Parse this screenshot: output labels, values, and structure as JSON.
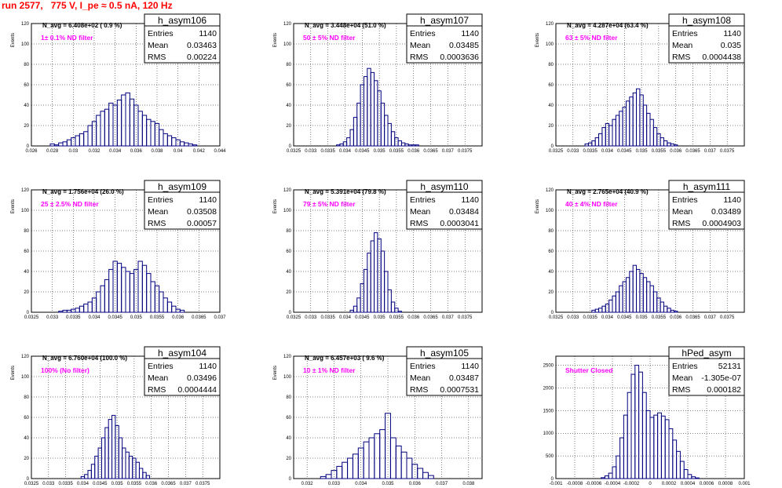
{
  "page": {
    "run_title": "run 2577,   775 V, I_pe ≈ 0.5 nA, 120 Hz"
  },
  "colors": {
    "histogram": "#00007f",
    "filter_label": "#ff00ff",
    "title": "#ff0000",
    "grid": "#000000"
  },
  "chart_data": [
    {
      "type": "bar",
      "name": "h_asym106",
      "ylabel": "Events",
      "xlabel": "",
      "xlim": [
        0.026,
        0.044
      ],
      "ylim": [
        0,
        120
      ],
      "xticks": [
        "0.026",
        "0.028",
        "0.03",
        "0.032",
        "0.034",
        "0.036",
        "0.038",
        "0.04",
        "0.042",
        "0.044"
      ],
      "yticks": [
        "0",
        "20",
        "40",
        "60",
        "80",
        "100",
        "120"
      ],
      "stats": {
        "entries_label": "Entries",
        "entries": "1140",
        "mean_label": "Mean",
        "mean": "0.03463",
        "rms_label": "RMS",
        "rms": "0.00224"
      },
      "n_avg": "N_avg = 6.408e+02 ( 0.9 %)",
      "filter": "1± 0.1% ND filter",
      "x": [
        0.028,
        0.0284,
        0.0288,
        0.0292,
        0.0296,
        0.03,
        0.0304,
        0.0308,
        0.0312,
        0.0316,
        0.032,
        0.0324,
        0.0328,
        0.0332,
        0.0336,
        0.034,
        0.0344,
        0.0348,
        0.0352,
        0.0356,
        0.036,
        0.0364,
        0.0368,
        0.0372,
        0.0376,
        0.038,
        0.0384,
        0.0388,
        0.0392,
        0.0396,
        0.04,
        0.0404,
        0.0408,
        0.0412,
        0.0416
      ],
      "values": [
        2,
        1,
        3,
        4,
        6,
        8,
        10,
        12,
        14,
        20,
        24,
        30,
        34,
        36,
        42,
        40,
        45,
        50,
        52,
        46,
        40,
        34,
        30,
        26,
        24,
        22,
        16,
        12,
        10,
        8,
        6,
        4,
        3,
        2,
        1
      ]
    },
    {
      "type": "bar",
      "name": "h_asym107",
      "ylabel": "Events",
      "xlim": [
        0.0325,
        0.038
      ],
      "ylim": [
        0,
        120
      ],
      "xticks": [
        "0.0325",
        "0.033",
        "0.0335",
        "0.034",
        "0.0345",
        "0.035",
        "0.0355",
        "0.036",
        "0.0365",
        "0.037",
        "0.0375"
      ],
      "yticks": [
        "0",
        "20",
        "40",
        "60",
        "80",
        "100",
        "120"
      ],
      "stats": {
        "entries_label": "Entries",
        "entries": "1140",
        "mean_label": "Mean",
        "mean": "0.03485",
        "rms_label": "RMS",
        "rms": "0.0003636"
      },
      "n_avg": "N_avg = 3.448e+04 (51.0 %)",
      "filter": "50 ± 5% ND filter",
      "x": [
        0.0338,
        0.0339,
        0.034,
        0.0341,
        0.0342,
        0.0343,
        0.0344,
        0.0345,
        0.0346,
        0.0347,
        0.0348,
        0.0349,
        0.035,
        0.0351,
        0.0352,
        0.0353,
        0.0354,
        0.0355,
        0.0356,
        0.0357,
        0.0358,
        0.0359,
        0.036,
        0.0361
      ],
      "values": [
        1,
        2,
        4,
        8,
        16,
        28,
        42,
        60,
        68,
        76,
        72,
        64,
        54,
        42,
        30,
        22,
        14,
        8,
        5,
        3,
        2,
        1,
        1,
        1
      ]
    },
    {
      "type": "bar",
      "name": "h_asym108",
      "ylabel": "Events",
      "xlim": [
        0.0325,
        0.038
      ],
      "ylim": [
        0,
        120
      ],
      "xticks": [
        "0.0325",
        "0.033",
        "0.0335",
        "0.034",
        "0.0345",
        "0.035",
        "0.0355",
        "0.036",
        "0.0365",
        "0.037",
        "0.0375"
      ],
      "yticks": [
        "0",
        "20",
        "40",
        "60",
        "80",
        "100",
        "120"
      ],
      "stats": {
        "entries_label": "Entries",
        "entries": "1140",
        "mean_label": "Mean",
        "mean": "0.035",
        "rms_label": "RMS",
        "rms": "0.0004438"
      },
      "n_avg": "N_avg = 4.287e+04 (63.4 %)",
      "filter": "63 ± 5% ND filter",
      "x": [
        0.0334,
        0.0335,
        0.0336,
        0.0337,
        0.0338,
        0.0339,
        0.034,
        0.0341,
        0.0342,
        0.0343,
        0.0344,
        0.0345,
        0.0346,
        0.0347,
        0.0348,
        0.0349,
        0.035,
        0.0351,
        0.0352,
        0.0353,
        0.0354,
        0.0355,
        0.0356,
        0.0357,
        0.0358,
        0.0359,
        0.036
      ],
      "values": [
        2,
        3,
        5,
        8,
        12,
        18,
        22,
        20,
        26,
        30,
        34,
        38,
        44,
        48,
        52,
        56,
        50,
        40,
        32,
        26,
        18,
        12,
        8,
        5,
        3,
        2,
        1
      ]
    },
    {
      "type": "bar",
      "name": "h_asym109",
      "ylabel": "Events",
      "xlim": [
        0.0325,
        0.037
      ],
      "ylim": [
        0,
        120
      ],
      "xticks": [
        "0.0325",
        "0.033",
        "0.0335",
        "0.034",
        "0.0345",
        "0.035",
        "0.0355",
        "0.036",
        "0.0365",
        "0.037"
      ],
      "yticks": [
        "0",
        "20",
        "40",
        "60",
        "80",
        "100",
        "120"
      ],
      "stats": {
        "entries_label": "Entries",
        "entries": "1140",
        "mean_label": "Mean",
        "mean": "0.03508",
        "rms_label": "RMS",
        "rms": "0.00057"
      },
      "n_avg": "N_avg = 1.756e+04 (26.0 %)",
      "filter": "25 ± 2.5% ND filter",
      "x": [
        0.0332,
        0.0333,
        0.0334,
        0.0335,
        0.0336,
        0.0337,
        0.0338,
        0.0339,
        0.034,
        0.0341,
        0.0342,
        0.0343,
        0.0344,
        0.0345,
        0.0346,
        0.0347,
        0.0348,
        0.0349,
        0.035,
        0.0351,
        0.0352,
        0.0353,
        0.0354,
        0.0355,
        0.0356,
        0.0357,
        0.0358,
        0.0359,
        0.036,
        0.0361
      ],
      "values": [
        1,
        2,
        2,
        3,
        4,
        6,
        8,
        10,
        14,
        20,
        26,
        32,
        42,
        50,
        48,
        44,
        40,
        38,
        42,
        50,
        46,
        38,
        30,
        26,
        20,
        14,
        10,
        6,
        3,
        2
      ]
    },
    {
      "type": "bar",
      "name": "h_asym110",
      "ylabel": "Events",
      "xlim": [
        0.0325,
        0.038
      ],
      "ylim": [
        0,
        120
      ],
      "xticks": [
        "0.0325",
        "0.033",
        "0.0335",
        "0.034",
        "0.0345",
        "0.035",
        "0.0355",
        "0.036",
        "0.0365",
        "0.037",
        "0.0375"
      ],
      "yticks": [
        "0",
        "20",
        "40",
        "60",
        "80",
        "100",
        "120"
      ],
      "stats": {
        "entries_label": "Entries",
        "entries": "1140",
        "mean_label": "Mean",
        "mean": "0.03484",
        "rms_label": "RMS",
        "rms": "0.0003041"
      },
      "n_avg": "N_avg = 5.391e+04 (79.8 %)",
      "filter": "79 ± 5% ND filter",
      "x": [
        0.0342,
        0.0343,
        0.0344,
        0.0345,
        0.0346,
        0.0347,
        0.0348,
        0.0349,
        0.035,
        0.0351,
        0.0352,
        0.0353,
        0.0354,
        0.0355,
        0.0356
      ],
      "values": [
        2,
        6,
        14,
        28,
        42,
        58,
        70,
        78,
        72,
        60,
        40,
        22,
        10,
        4,
        1
      ]
    },
    {
      "type": "bar",
      "name": "h_asym111",
      "ylabel": "Events",
      "xlim": [
        0.0325,
        0.038
      ],
      "ylim": [
        0,
        120
      ],
      "xticks": [
        "0.0325",
        "0.033",
        "0.0335",
        "0.034",
        "0.0345",
        "0.035",
        "0.0355",
        "0.036",
        "0.0365",
        "0.037",
        "0.0375"
      ],
      "yticks": [
        "0",
        "20",
        "40",
        "60",
        "80",
        "100",
        "120"
      ],
      "stats": {
        "entries_label": "Entries",
        "entries": "1140",
        "mean_label": "Mean",
        "mean": "0.03489",
        "rms_label": "RMS",
        "rms": "0.0004903"
      },
      "n_avg": "N_avg = 2.765e+04 (40.9 %)",
      "filter": "40 ± 4% ND filter",
      "x": [
        0.0336,
        0.0337,
        0.0338,
        0.0339,
        0.034,
        0.0341,
        0.0342,
        0.0343,
        0.0344,
        0.0345,
        0.0346,
        0.0347,
        0.0348,
        0.0349,
        0.035,
        0.0351,
        0.0352,
        0.0353,
        0.0354,
        0.0355,
        0.0356,
        0.0357,
        0.0358,
        0.0359,
        0.036
      ],
      "values": [
        2,
        3,
        4,
        6,
        8,
        12,
        16,
        20,
        26,
        30,
        34,
        40,
        46,
        42,
        38,
        34,
        30,
        26,
        20,
        14,
        10,
        6,
        4,
        2,
        1
      ]
    },
    {
      "type": "bar",
      "name": "h_asym104",
      "ylabel": "Events",
      "xlim": [
        0.0325,
        0.038
      ],
      "ylim": [
        0,
        120
      ],
      "xticks": [
        "0.0325",
        "0.033",
        "0.0335",
        "0.034",
        "0.0345",
        "0.035",
        "0.0355",
        "0.036",
        "0.0365",
        "0.037",
        "0.0375"
      ],
      "yticks": [
        "0",
        "20",
        "40",
        "60",
        "80",
        "100",
        "120"
      ],
      "stats": {
        "entries_label": "Entries",
        "entries": "1140",
        "mean_label": "Mean",
        "mean": "0.03496",
        "rms_label": "RMS",
        "rms": "0.0004444"
      },
      "n_avg": "N_avg = 6.760e+04 (100.0 %)",
      "filter": "100% (No filter)",
      "x": [
        0.034,
        0.0341,
        0.0342,
        0.0343,
        0.0344,
        0.0345,
        0.0346,
        0.0347,
        0.0348,
        0.0349,
        0.035,
        0.0351,
        0.0352,
        0.0353,
        0.0354,
        0.0355,
        0.0356,
        0.0357,
        0.0358,
        0.0359
      ],
      "values": [
        2,
        4,
        8,
        14,
        22,
        30,
        40,
        50,
        58,
        62,
        52,
        40,
        30,
        26,
        22,
        20,
        16,
        10,
        6,
        3
      ]
    },
    {
      "type": "bar",
      "name": "h_asym105",
      "ylabel": "Events",
      "xlim": [
        0.0315,
        0.0385
      ],
      "ylim": [
        0,
        120
      ],
      "xticks": [
        "0.032",
        "0.033",
        "0.034",
        "0.035",
        "0.036",
        "0.037",
        "0.038"
      ],
      "yticks": [
        "0",
        "20",
        "40",
        "60",
        "80",
        "100",
        "120"
      ],
      "stats": {
        "entries_label": "Entries",
        "entries": "1140",
        "mean_label": "Mean",
        "mean": "0.03487",
        "rms_label": "RMS",
        "rms": "0.0007531"
      },
      "n_avg": "N_avg = 6.457e+03 ( 9.6 %)",
      "filter": "10 ± 1% ND filter",
      "x": [
        0.0326,
        0.0328,
        0.033,
        0.0332,
        0.0334,
        0.0336,
        0.0338,
        0.034,
        0.0342,
        0.0344,
        0.0346,
        0.0348,
        0.035,
        0.0352,
        0.0354,
        0.0356,
        0.0358,
        0.036,
        0.0362,
        0.0364,
        0.0366
      ],
      "values": [
        2,
        4,
        8,
        12,
        16,
        20,
        24,
        30,
        36,
        40,
        44,
        48,
        64,
        40,
        32,
        26,
        20,
        14,
        10,
        6,
        3
      ]
    },
    {
      "type": "bar",
      "name": "hPed_asym",
      "ylabel": "",
      "xlim": [
        -0.001,
        0.001
      ],
      "ylim": [
        0,
        2700
      ],
      "xticks": [
        "-0.001",
        "-0.0008",
        "-0.0006",
        "-0.0004",
        "-0.0002",
        "0",
        "0.0002",
        "0.0004",
        "0.0006",
        "0.0008",
        "0.001"
      ],
      "yticks": [
        "0",
        "500",
        "1000",
        "1500",
        "2000",
        "2500"
      ],
      "stats": {
        "entries_label": "Entries",
        "entries": "52131",
        "mean_label": "Mean",
        "mean": "-1.305e-07",
        "rms_label": "RMS",
        "rms": "0.000182"
      },
      "n_avg": "",
      "filter": "Shutter Closed",
      "x": [
        -0.0005,
        -0.00046,
        -0.00042,
        -0.00038,
        -0.00034,
        -0.0003,
        -0.00026,
        -0.00022,
        -0.00018,
        -0.00014,
        -0.0001,
        -6e-05,
        -2e-05,
        2e-05,
        6e-05,
        0.0001,
        0.00014,
        0.00018,
        0.00022,
        0.00026,
        0.0003,
        0.00034,
        0.00038,
        0.00042,
        0.00046,
        0.0005
      ],
      "values": [
        20,
        60,
        120,
        260,
        500,
        900,
        1400,
        1900,
        2300,
        2500,
        2350,
        1900,
        1500,
        1350,
        1400,
        1450,
        1380,
        1300,
        1100,
        850,
        600,
        380,
        200,
        90,
        40,
        15
      ]
    }
  ]
}
